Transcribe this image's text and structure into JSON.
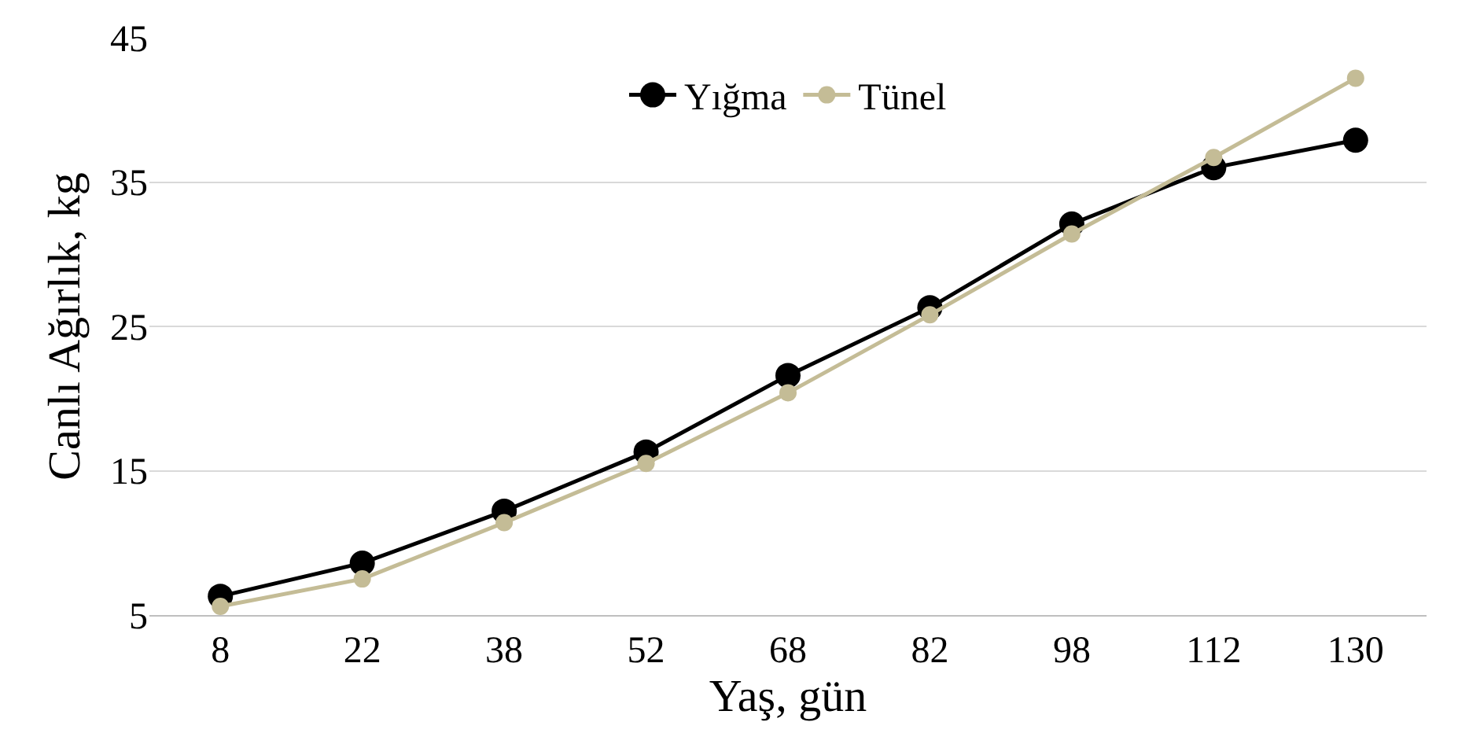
{
  "chart_data": {
    "type": "line",
    "xlabel": "Yaş, gün",
    "ylabel": "Canlı Ağırlık, kg",
    "categories": [
      "8",
      "22",
      "38",
      "52",
      "68",
      "82",
      "98",
      "112",
      "130"
    ],
    "series": [
      {
        "name": "Yığma",
        "color": "#000000",
        "values": [
          6.3,
          8.6,
          12.2,
          16.3,
          21.6,
          26.3,
          32.1,
          36.0,
          37.9
        ]
      },
      {
        "name": "Tünel",
        "color": "#c4bc96",
        "values": [
          5.6,
          7.5,
          11.4,
          15.5,
          20.4,
          25.8,
          31.4,
          36.7,
          42.2
        ]
      }
    ],
    "ylim": [
      5,
      45
    ],
    "yticks": [
      5,
      15,
      25,
      35,
      45
    ],
    "grid": "y",
    "legend": "top",
    "marker": "circle",
    "line_style": "solid"
  }
}
